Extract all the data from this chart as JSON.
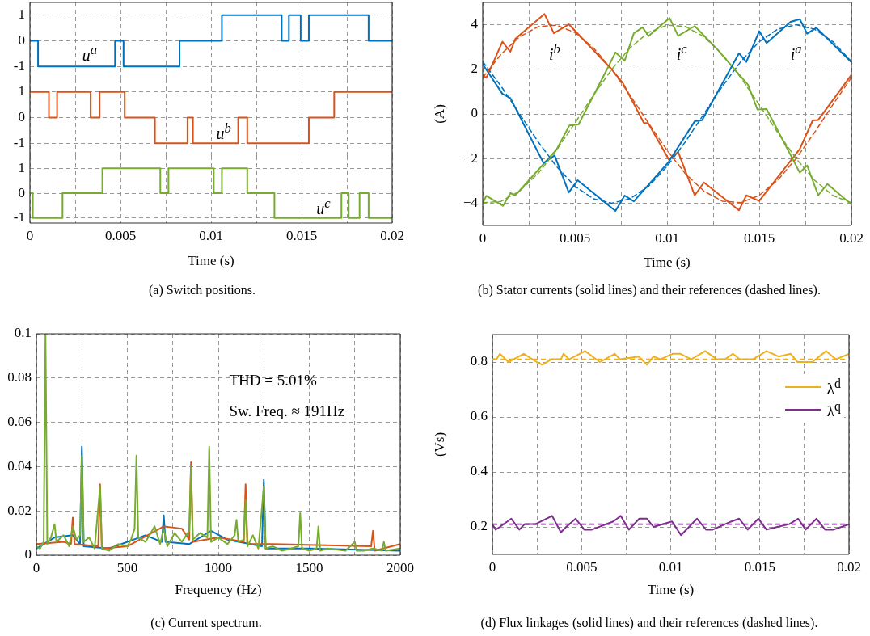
{
  "chart_data": [
    {
      "type": "step",
      "xlim": [
        0,
        0.02
      ],
      "xticks": [
        0,
        {
          "value": 0.0025,
          "label": null
        },
        0.005,
        {
          "value": 0.0075,
          "label": null
        },
        0.01,
        {
          "value": 0.0125,
          "label": null
        },
        0.015,
        {
          "value": 0.0175,
          "label": null
        },
        0.02
      ],
      "ylim": [
        -1.5,
        1.5
      ],
      "yticks": [
        -1,
        0,
        1
      ],
      "grid": true,
      "tick_labels": "y",
      "series": [
        {
          "name": "u$^{a}$",
          "color": "#0072bd",
          "x": [
            0,
            0.00045,
            0.0047,
            0.00517,
            0.00826,
            0.0106,
            0.0139,
            0.0143,
            0.01495,
            0.0154,
            0.0187,
            0.02
          ],
          "values": [
            0,
            0,
            -1,
            0,
            -1,
            0,
            1,
            0,
            1,
            0,
            1,
            0
          ]
        }
      ]
    },
    {
      "type": "step",
      "xlim": [
        0,
        0.02
      ],
      "xticks": [
        0,
        {
          "value": 0.0025,
          "label": null
        },
        0.005,
        {
          "value": 0.0075,
          "label": null
        },
        0.01,
        {
          "value": 0.0125,
          "label": null
        },
        0.015,
        {
          "value": 0.0175,
          "label": null
        },
        0.02
      ],
      "ylim": [
        -1.5,
        1.5
      ],
      "yticks": [
        -1,
        0,
        1
      ],
      "grid": true,
      "tick_labels": "y",
      "series": [
        {
          "name": "u$^{b}$",
          "color": "#d95319",
          "x": [
            0,
            0.00105,
            0.0015,
            0.00335,
            0.00385,
            0.00523,
            0.0069,
            0.0087,
            0.009,
            0.0115,
            0.012,
            0.0154,
            0.0168,
            0.02
          ],
          "values": [
            1,
            1,
            0,
            1,
            0,
            1,
            0,
            -1,
            0,
            -1,
            0,
            -1,
            0,
            1
          ]
        }
      ]
    },
    {
      "type": "step",
      "xlabel": "Time (s)",
      "annotations": [
        "(a) Switch positions."
      ],
      "xlim": [
        0,
        0.02
      ],
      "xticks": [
        0,
        {
          "value": 0.0025,
          "label": null
        },
        0.005,
        {
          "value": 0.0075,
          "label": null
        },
        0.01,
        {
          "value": 0.0125,
          "label": null
        },
        0.015,
        {
          "value": 0.0175,
          "label": null
        },
        0.02
      ],
      "ylim": [
        -1.2,
        1.5
      ],
      "yticks": [
        -1,
        0,
        1
      ],
      "grid": true,
      "series": [
        {
          "name": "u$^{c}$",
          "color": "#77ac30",
          "x": [
            0,
            0.00016,
            0.0018,
            0.004,
            0.0072,
            0.00765,
            0.01015,
            0.0106,
            0.012,
            0.0135,
            0.0172,
            0.0176,
            0.0182,
            0.0187,
            0.02
          ],
          "values": [
            0,
            0,
            -1,
            0,
            1,
            0,
            1,
            0,
            1,
            0,
            -1,
            0,
            -1,
            0,
            -1
          ]
        }
      ]
    },
    {
      "type": "line",
      "xlabel": "Time (s)",
      "ylabel": "(A)",
      "annotations": [
        "(b) Stator currents (solid lines) and their references (dashed lines)."
      ],
      "xlim": [
        0,
        0.02
      ],
      "xticks": [
        0,
        {
          "value": 0.0025,
          "label": null
        },
        0.005,
        {
          "value": 0.0075,
          "label": null
        },
        0.01,
        {
          "value": 0.0125,
          "label": null
        },
        0.015,
        {
          "value": 0.0175,
          "label": null
        },
        0.02
      ],
      "ylim": [
        -5,
        5
      ],
      "yticks": [
        {
          "value": -4,
          "label": "−4"
        },
        {
          "value": -2,
          "label": "−2"
        },
        0,
        2,
        4
      ],
      "grid": true,
      "x": [
        0,
        0.001,
        0.002,
        0.003,
        0.004,
        0.005,
        0.006,
        0.007,
        0.008,
        0.009,
        0.01,
        0.011,
        0.012,
        0.013,
        0.014,
        0.015,
        0.016,
        0.017,
        0.018,
        0.019,
        0.02
      ],
      "series": [
        {
          "name": "i$^{b}$",
          "color": "#d95319",
          "x": [
            0,
            0.0002,
            0.00107,
            0.0015,
            0.00177,
            0.00335,
            0.00386,
            0.00467,
            0.00696,
            0.0076,
            0.00874,
            0.00898,
            0.0101,
            0.0106,
            0.0115,
            0.012,
            0.0139,
            0.0143,
            0.015,
            0.0172,
            0.0179,
            0.0182,
            0.02
          ],
          "values": [
            1.75,
            1.62,
            3.24,
            2.79,
            3.37,
            4.48,
            3.62,
            4.02,
            2.03,
            1.39,
            -0.4,
            -0.42,
            -2.05,
            -1.7,
            -3.65,
            -3.07,
            -4.32,
            -3.65,
            -3.9,
            -1.57,
            -0.29,
            -0.27,
            1.75
          ]
        },
        {
          "name": "i$^{c}$",
          "color": "#77ac30",
          "x": [
            0,
            0.0002,
            0.0011,
            0.0015,
            0.00177,
            0.004,
            0.0047,
            0.0052,
            0.0068,
            0.0072,
            0.0077,
            0.0082,
            0.00867,
            0.009,
            0.01014,
            0.0106,
            0.0115,
            0.0127,
            0.0144,
            0.0149,
            0.0154,
            0.0172,
            0.0176,
            0.0182,
            0.0187,
            0.02
          ],
          "values": [
            -4.0,
            -3.67,
            -4.12,
            -3.55,
            -3.65,
            -1.6,
            -0.52,
            -0.47,
            2.09,
            2.76,
            2.39,
            3.62,
            3.88,
            3.5,
            4.3,
            3.5,
            3.94,
            2.92,
            1.3,
            0.2,
            0.22,
            -2.63,
            -2.31,
            -3.65,
            -3.14,
            -4.06
          ]
        },
        {
          "name": "i$^{a}$",
          "color": "#0072bd",
          "x": [
            0,
            0.00107,
            0.0015,
            0.0033,
            0.0039,
            0.00467,
            0.00515,
            0.0072,
            0.0077,
            0.0082,
            0.01006,
            0.0115,
            0.0119,
            0.0139,
            0.0143,
            0.015,
            0.0154,
            0.0167,
            0.0172,
            0.0176,
            0.0181,
            0.02
          ],
          "values": [
            2.23,
            0.9,
            0.71,
            -2.2,
            -1.86,
            -3.52,
            -2.97,
            -4.35,
            -3.66,
            -3.92,
            -2.18,
            -0.33,
            -0.28,
            2.72,
            2.33,
            3.71,
            3.18,
            4.13,
            4.25,
            3.6,
            3.86,
            2.32
          ]
        },
        {
          "color": "#0072bd",
          "line_style": "dashed",
          "values": [
            2.35,
            1.24,
            0,
            -1.24,
            -2.35,
            -3.24,
            -3.8,
            -4,
            -3.8,
            -3.24,
            -2.35,
            -1.24,
            0,
            1.24,
            2.35,
            3.24,
            3.8,
            4,
            3.8,
            3.24,
            2.35
          ]
        },
        {
          "color": "#d95319",
          "line_style": "dashed",
          "values": [
            1.63,
            2.68,
            3.46,
            3.91,
            3.98,
            3.65,
            2.97,
            2,
            0.83,
            -0.42,
            -1.63,
            -2.68,
            -3.46,
            -3.91,
            -3.98,
            -3.65,
            -2.97,
            -2,
            -0.83,
            0.42,
            1.63
          ]
        },
        {
          "color": "#77ac30",
          "line_style": "dashed",
          "values": [
            -3.98,
            -3.92,
            -3.46,
            -2.67,
            -1.63,
            -0.41,
            0.83,
            2,
            2.97,
            3.66,
            3.98,
            3.92,
            3.46,
            2.67,
            1.63,
            0.41,
            -0.83,
            -2,
            -2.97,
            -3.66,
            -3.98
          ]
        }
      ]
    },
    {
      "type": "line",
      "xlabel": "Frequency (Hz)",
      "annotations": [
        "THD = 5.01%",
        "Sw. Freq. ≈ 191Hz",
        "(c) Current spectrum."
      ],
      "xlim": [
        0,
        2000
      ],
      "xticks": [
        0,
        {
          "value": 250,
          "label": null
        },
        500,
        {
          "value": 750,
          "label": null
        },
        1000,
        {
          "value": 1250,
          "label": null
        },
        1500,
        {
          "value": 1750,
          "label": null
        },
        2000
      ],
      "ylim": [
        0,
        0.1
      ],
      "yticks": [
        0,
        0.02,
        0.04,
        0.06,
        0.08,
        0.1
      ],
      "grid": true,
      "series": [
        {
          "color": "#0072bd",
          "x": [
            0,
            100,
            200,
            240,
            250,
            260,
            400,
            600,
            690,
            700,
            710,
            840,
            960,
            1050,
            1240,
            1250,
            1260,
            1500,
            2000
          ],
          "values": [
            0.003,
            0.008,
            0.009,
            0.005,
            0.049,
            0.004,
            0.003,
            0.009,
            0.006,
            0.018,
            0.006,
            0.005,
            0.011,
            0.007,
            0.004,
            0.034,
            0.003,
            0.003,
            0.002
          ]
        },
        {
          "color": "#d95319",
          "x": [
            0,
            150,
            190,
            200,
            210,
            340,
            350,
            360,
            500,
            700,
            800,
            840,
            850,
            860,
            1000,
            1140,
            1150,
            1160,
            1300,
            1840,
            1850,
            1860,
            2000
          ],
          "values": [
            0.005,
            0.006,
            0.005,
            0.017,
            0.005,
            0.004,
            0.032,
            0.003,
            0.004,
            0.013,
            0.012,
            0.007,
            0.042,
            0.006,
            0.008,
            0.006,
            0.032,
            0.005,
            0.005,
            0.004,
            0.011,
            0.002,
            0.005
          ]
        },
        {
          "color": "#77ac30",
          "x": [
            0,
            20,
            40,
            50,
            60,
            80,
            100,
            110,
            150,
            180,
            200,
            220,
            240,
            250,
            260,
            290,
            320,
            350,
            360,
            400,
            450,
            500,
            520,
            540,
            550,
            560,
            600,
            650,
            680,
            700,
            720,
            760,
            800,
            840,
            850,
            860,
            900,
            940,
            950,
            960,
            1000,
            1050,
            1090,
            1100,
            1110,
            1140,
            1150,
            1160,
            1190,
            1220,
            1250,
            1260,
            1300,
            1350,
            1400,
            1440,
            1450,
            1460,
            1500,
            1540,
            1550,
            1560,
            1600,
            1700,
            1750,
            1760,
            1800,
            1850,
            1900,
            1910,
            1920,
            2000
          ],
          "values": [
            0.004,
            0.003,
            0.006,
            0.1,
            0.005,
            0.008,
            0.014,
            0.006,
            0.009,
            0.004,
            0.013,
            0.007,
            0.009,
            0.045,
            0.006,
            0.008,
            0.003,
            0.031,
            0.003,
            0.002,
            0.005,
            0.004,
            0.007,
            0.012,
            0.045,
            0.008,
            0.006,
            0.013,
            0.005,
            0.012,
            0.004,
            0.01,
            0.006,
            0.011,
            0.04,
            0.007,
            0.01,
            0.008,
            0.049,
            0.006,
            0.008,
            0.005,
            0.009,
            0.016,
            0.006,
            0.007,
            0.025,
            0.004,
            0.009,
            0.003,
            0.031,
            0.003,
            0.004,
            0.002,
            0.003,
            0.004,
            0.019,
            0.003,
            0.002,
            0.003,
            0.013,
            0.002,
            0.003,
            0.002,
            0.006,
            0.002,
            0.002,
            0.003,
            0.002,
            0.006,
            0.002,
            0.003
          ]
        }
      ]
    },
    {
      "type": "line",
      "xlabel": "Time (s)",
      "ylabel": "(Vs)",
      "annotations": [
        "(d) Flux linkages (solid lines) and their references (dashed lines)."
      ],
      "xlim": [
        0,
        0.02
      ],
      "xticks": [
        0,
        {
          "value": 0.0025,
          "label": null
        },
        0.005,
        {
          "value": 0.0075,
          "label": null
        },
        0.01,
        {
          "value": 0.0125,
          "label": null
        },
        0.015,
        {
          "value": 0.0175,
          "label": null
        },
        0.02
      ],
      "ylim": [
        0.1,
        0.9
      ],
      "yticks": [
        0.2,
        0.4,
        0.6,
        0.8
      ],
      "grid": true,
      "legend": "top right",
      "ref_lines": [
        {
          "axis": "y",
          "value": 0.81,
          "color": "#edb120",
          "line_style": "dashed"
        },
        {
          "axis": "y",
          "value": 0.21,
          "color": "#7e2f8e",
          "line_style": "dashed"
        }
      ],
      "series": [
        {
          "name": "λ$^{d}$",
          "color": "#edb120",
          "x": [
            0,
            0.00023,
            0.00042,
            0.0009,
            0.00176,
            0.00249,
            0.00279,
            0.00332,
            0.00384,
            0.00399,
            0.0043,
            0.0052,
            0.00603,
            0.00686,
            0.00716,
            0.00821,
            0.00867,
            0.00904,
            0.00942,
            0.0101,
            0.01055,
            0.01115,
            0.01194,
            0.01258,
            0.01304,
            0.01349,
            0.01387,
            0.01462,
            0.01537,
            0.01605,
            0.01673,
            0.01711,
            0.01794,
            0.01872,
            0.01926,
            0.02
          ],
          "values": [
            0.81,
            0.81,
            0.83,
            0.8,
            0.83,
            0.8,
            0.79,
            0.81,
            0.81,
            0.83,
            0.81,
            0.84,
            0.8,
            0.83,
            0.81,
            0.82,
            0.79,
            0.82,
            0.81,
            0.83,
            0.83,
            0.81,
            0.84,
            0.81,
            0.81,
            0.83,
            0.81,
            0.81,
            0.84,
            0.82,
            0.83,
            0.8,
            0.8,
            0.84,
            0.81,
            0.83
          ]
        },
        {
          "name": "λ$^{q}$",
          "color": "#7e2f8e",
          "x": [
            0,
            0.00018,
            0.00042,
            0.00106,
            0.00151,
            0.00181,
            0.00241,
            0.00335,
            0.00384,
            0.00414,
            0.00467,
            0.00515,
            0.00558,
            0.00678,
            0.0072,
            0.00766,
            0.00824,
            0.00867,
            0.00904,
            0.01007,
            0.01058,
            0.01148,
            0.01198,
            0.01236,
            0.01341,
            0.01384,
            0.01432,
            0.01492,
            0.01537,
            0.01598,
            0.01665,
            0.01715,
            0.01757,
            0.01818,
            0.01866,
            0.01914,
            0.02
          ],
          "values": [
            0.21,
            0.19,
            0.2,
            0.23,
            0.19,
            0.21,
            0.21,
            0.24,
            0.18,
            0.2,
            0.23,
            0.19,
            0.19,
            0.22,
            0.24,
            0.19,
            0.23,
            0.23,
            0.2,
            0.22,
            0.17,
            0.23,
            0.19,
            0.19,
            0.22,
            0.23,
            0.19,
            0.23,
            0.19,
            0.2,
            0.21,
            0.23,
            0.19,
            0.23,
            0.19,
            0.19,
            0.21
          ]
        }
      ]
    }
  ]
}
